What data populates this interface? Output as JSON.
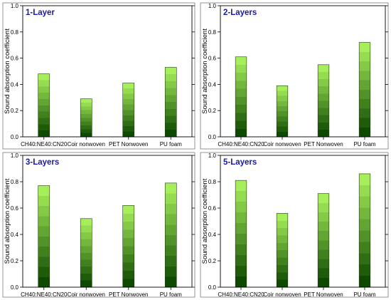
{
  "chart_data": [
    {
      "type": "bar",
      "title": "1-Layer",
      "ylabel": "Sound absorption coefficient",
      "xlabel": "",
      "ylim": [
        0,
        1.0
      ],
      "yticks": [
        "0.0",
        "0.2",
        "0.4",
        "0.6",
        "0.8",
        "1.0"
      ],
      "categories": [
        "CH40:NE40:CN20",
        "Coir nonwoven",
        "PET Nonwoven",
        "PU foam"
      ],
      "values": [
        0.48,
        0.29,
        0.41,
        0.53
      ]
    },
    {
      "type": "bar",
      "title": "2-Layers",
      "ylabel": "Sound absorption coefficient",
      "xlabel": "",
      "ylim": [
        0,
        1.0
      ],
      "yticks": [
        "0.0",
        "0.2",
        "0.4",
        "0.6",
        "0.8",
        "1.0"
      ],
      "categories": [
        "CH40:NE40:CN20",
        "Coir nonwoven",
        "PET Nonwoven",
        "PU foam"
      ],
      "values": [
        0.61,
        0.39,
        0.55,
        0.72
      ]
    },
    {
      "type": "bar",
      "title": "3-Layers",
      "ylabel": "Sound absorption coefficient",
      "xlabel": "",
      "ylim": [
        0,
        1.0
      ],
      "yticks": [
        "0.0",
        "0.2",
        "0.4",
        "0.6",
        "0.8",
        "1.0"
      ],
      "categories": [
        "CH40:NE40:CN20",
        "Coir nonwoven",
        "PET Nonwoven",
        "PU foam"
      ],
      "values": [
        0.77,
        0.52,
        0.62,
        0.79
      ]
    },
    {
      "type": "bar",
      "title": "5-Layers",
      "ylabel": "Sound absorption coefficient",
      "xlabel": "",
      "ylim": [
        0,
        1.0
      ],
      "yticks": [
        "0.0",
        "0.2",
        "0.4",
        "0.6",
        "0.8",
        "1.0"
      ],
      "categories": [
        "CH40:NE40:CN20",
        "Coir nonwoven",
        "PET Nonwoven",
        "PU foam"
      ],
      "values": [
        0.81,
        0.56,
        0.71,
        0.86
      ]
    }
  ],
  "colors": {
    "bar_top": "#a6ee5a",
    "bar_bottom": "#0d4a00",
    "title": "#1a1aa8"
  }
}
